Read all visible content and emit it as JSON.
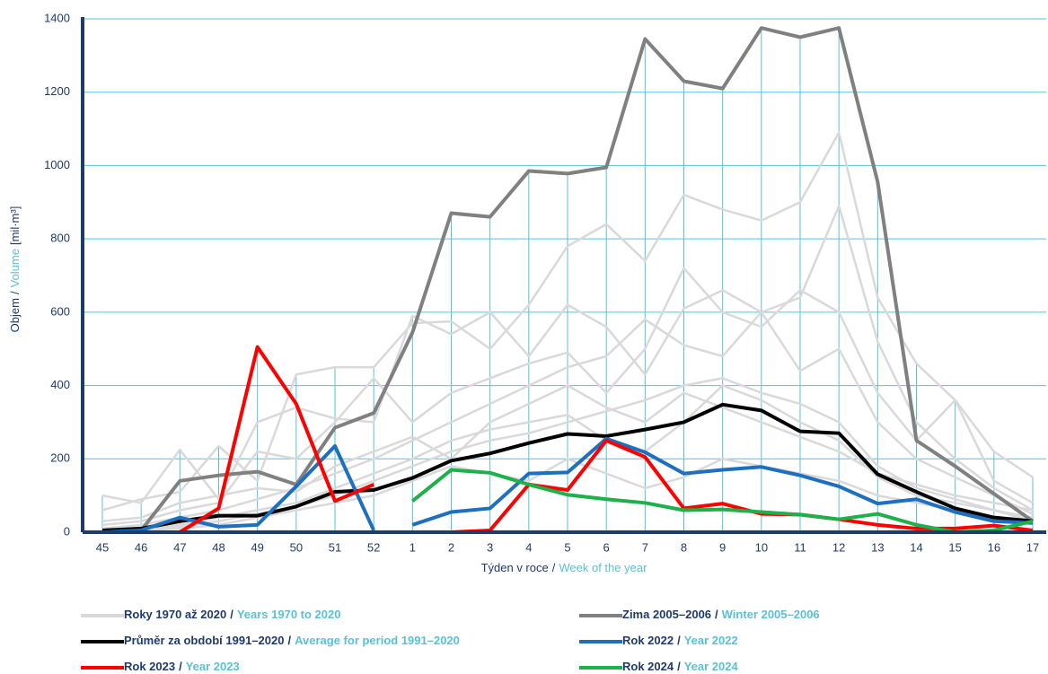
{
  "chart_data": {
    "type": "line",
    "ylabel": {
      "name": "Objem",
      "separator": "/",
      "name_en": "Volume",
      "unit": "[mil·m³]"
    },
    "xlabel": {
      "name": "Týden v roce",
      "separator": "/",
      "name_en": "Week of the year"
    },
    "categories": [
      "45",
      "46",
      "47",
      "48",
      "49",
      "50",
      "51",
      "52",
      "1",
      "2",
      "3",
      "4",
      "5",
      "6",
      "7",
      "8",
      "9",
      "10",
      "11",
      "12",
      "13",
      "14",
      "15",
      "16",
      "17"
    ],
    "ylim": [
      0,
      1400
    ],
    "yticks": [
      0,
      200,
      400,
      600,
      800,
      1000,
      1200,
      1400
    ],
    "grid": true,
    "background": {
      "name": "Roky 1970 až 2020",
      "separator": "/",
      "name_en": "Years 1970 to 2020",
      "color": "#d9d9d9",
      "lines": [
        [
          100,
          80,
          225,
          90,
          300,
          340,
          310,
          300,
          590,
          540,
          600,
          480,
          620,
          560,
          430,
          610,
          660,
          600,
          640,
          890,
          520,
          300,
          200,
          120,
          60
        ],
        [
          60,
          90,
          110,
          235,
          140,
          430,
          450,
          450,
          570,
          575,
          500,
          620,
          780,
          840,
          740,
          920,
          880,
          850,
          900,
          1090,
          640,
          460,
          360,
          220,
          150
        ],
        [
          20,
          30,
          60,
          80,
          220,
          200,
          300,
          420,
          300,
          380,
          420,
          460,
          490,
          380,
          500,
          720,
          600,
          560,
          660,
          600,
          380,
          250,
          360,
          140,
          80
        ],
        [
          10,
          20,
          40,
          60,
          90,
          120,
          160,
          200,
          250,
          300,
          350,
          400,
          450,
          480,
          580,
          510,
          480,
          600,
          440,
          500,
          300,
          200,
          150,
          100,
          50
        ],
        [
          5,
          10,
          20,
          40,
          60,
          80,
          120,
          160,
          200,
          250,
          280,
          300,
          320,
          250,
          220,
          300,
          400,
          360,
          300,
          250,
          150,
          100,
          80,
          60,
          40
        ],
        [
          0,
          5,
          15,
          30,
          50,
          70,
          100,
          140,
          180,
          220,
          250,
          270,
          300,
          330,
          360,
          400,
          420,
          380,
          350,
          300,
          180,
          120,
          90,
          60,
          30
        ],
        [
          0,
          5,
          10,
          20,
          40,
          60,
          80,
          100,
          140,
          180,
          160,
          140,
          200,
          160,
          120,
          150,
          200,
          180,
          160,
          140,
          100,
          80,
          60,
          40,
          30
        ],
        [
          30,
          40,
          80,
          100,
          120,
          110,
          180,
          220,
          260,
          200,
          300,
          350,
          400,
          340,
          300,
          380,
          340,
          300,
          260,
          220,
          160,
          130,
          100,
          80,
          60
        ]
      ]
    },
    "series": [
      {
        "name": "Zima 2005–2006",
        "separator": "/",
        "name_en": "Winter 2005–2006",
        "color": "#808080",
        "split": false,
        "values": [
          0,
          5,
          140,
          155,
          165,
          130,
          285,
          325,
          545,
          870,
          860,
          985,
          978,
          995,
          1345,
          1230,
          1210,
          1375,
          1350,
          1375,
          955,
          250,
          180,
          105,
          30
        ]
      },
      {
        "name": "Průměr za období 1991–2020",
        "separator": "/",
        "name_en": "Average for period 1991–2020",
        "color": "#000000",
        "split": false,
        "values": [
          5,
          10,
          30,
          45,
          45,
          70,
          110,
          115,
          148,
          195,
          215,
          243,
          268,
          262,
          280,
          300,
          348,
          332,
          275,
          270,
          158,
          110,
          65,
          40,
          30
        ]
      },
      {
        "name": "Rok 2022",
        "separator": "/",
        "name_en": "Year 2022",
        "color": "#1f6fc0",
        "split": true,
        "values": [
          0,
          5,
          40,
          15,
          20,
          125,
          235,
          5,
          20,
          55,
          65,
          160,
          163,
          255,
          218,
          160,
          170,
          178,
          155,
          125,
          78,
          90,
          55,
          30,
          25
        ]
      },
      {
        "name": "Rok 2023",
        "separator": "/",
        "name_en": "Year 2023",
        "color": "#ff0000",
        "split": true,
        "values": [
          0,
          0,
          0,
          65,
          505,
          350,
          85,
          130,
          0,
          0,
          5,
          130,
          115,
          250,
          205,
          65,
          78,
          50,
          48,
          35,
          20,
          10,
          10,
          18,
          5
        ]
      },
      {
        "name": "Rok 2024",
        "separator": "/",
        "name_en": "Year 2024",
        "color": "#1db04b",
        "split": true,
        "values": [
          null,
          null,
          null,
          null,
          null,
          null,
          null,
          null,
          85,
          170,
          162,
          130,
          102,
          90,
          80,
          60,
          62,
          55,
          48,
          35,
          50,
          20,
          0,
          5,
          30
        ]
      }
    ]
  }
}
